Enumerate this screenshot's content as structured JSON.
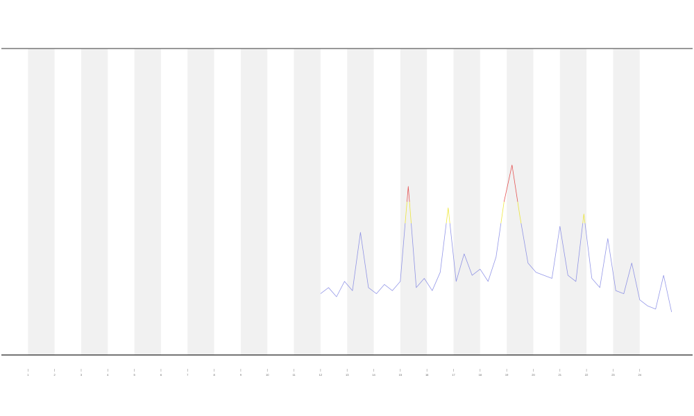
{
  "chart_data": {
    "type": "line",
    "xlim": [
      0,
      26
    ],
    "xticks": [
      1,
      2,
      3,
      4,
      5,
      6,
      7,
      8,
      9,
      10,
      11,
      12,
      13,
      14,
      15,
      16,
      17,
      18,
      19,
      20,
      21,
      22,
      23,
      24
    ],
    "ylim": [
      0,
      100
    ],
    "shaded_bands": true,
    "series": [
      {
        "color": "#6f74e0",
        "x": [
          12.0,
          12.3,
          12.6,
          12.9,
          13.2,
          13.5,
          13.8,
          14.1,
          14.4,
          14.7,
          15.0,
          15.3,
          15.6,
          15.9,
          16.2,
          16.5,
          16.8,
          17.1,
          17.4,
          17.7,
          18.0,
          18.3,
          18.6,
          18.9,
          19.2,
          19.5,
          19.8,
          20.1,
          20.4,
          20.7,
          21.0,
          21.3,
          21.6,
          21.9,
          22.2,
          22.5,
          22.8,
          23.1,
          23.4,
          23.7,
          24.0,
          24.3,
          24.6,
          24.9,
          25.2
        ],
        "values": [
          20,
          22,
          19,
          24,
          21,
          40,
          22,
          20,
          23,
          21,
          24,
          55,
          22,
          25,
          21,
          27,
          48,
          24,
          33,
          26,
          28,
          24,
          32,
          50,
          62,
          45,
          30,
          27,
          26,
          25,
          42,
          26,
          24,
          46,
          25,
          22,
          38,
          21,
          20,
          30,
          18,
          16,
          15,
          26,
          14
        ]
      }
    ]
  }
}
